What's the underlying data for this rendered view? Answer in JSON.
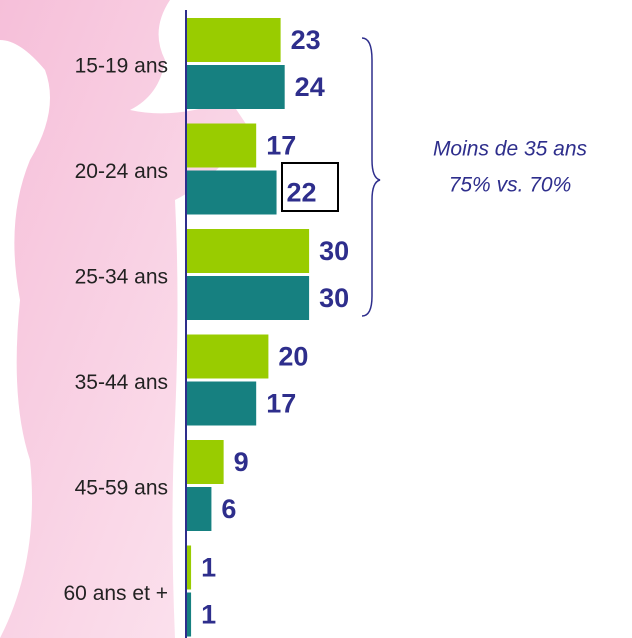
{
  "chart_data": {
    "type": "bar",
    "orientation": "horizontal",
    "categories": [
      "15-19 ans",
      "20-24 ans",
      "25-34 ans",
      "35-44 ans",
      "45-59 ans",
      "60 ans et +"
    ],
    "series": [
      {
        "color": "#99cc00",
        "values": [
          23,
          17,
          30,
          20,
          9,
          1
        ]
      },
      {
        "color": "#168080",
        "values": [
          24,
          22,
          30,
          17,
          6,
          1
        ]
      }
    ],
    "annotations": [
      "Moins de 35 ans",
      "75% vs. 70%"
    ]
  }
}
